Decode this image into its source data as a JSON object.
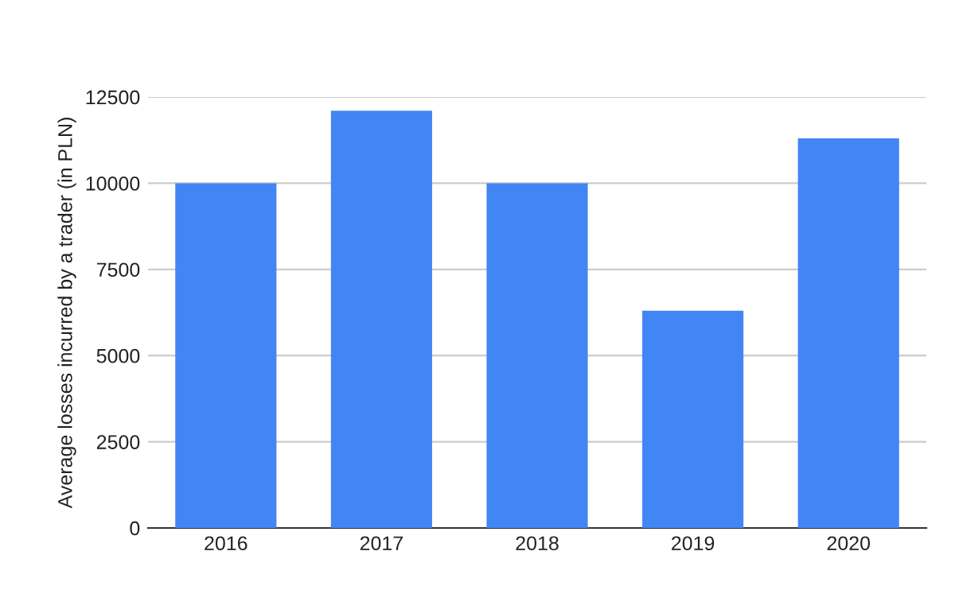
{
  "chart_data": {
    "type": "bar",
    "ylabel": "Average losses incurred by a trader (in PLN)",
    "categories": [
      "2016",
      "2017",
      "2018",
      "2019",
      "2020"
    ],
    "values": [
      10000,
      12100,
      10000,
      6300,
      11300
    ],
    "color": "#4285f4",
    "ylim": [
      0,
      12500
    ],
    "yticks": [
      0,
      2500,
      5000,
      7500,
      10000,
      12500
    ],
    "grid": "y",
    "legend": false
  }
}
